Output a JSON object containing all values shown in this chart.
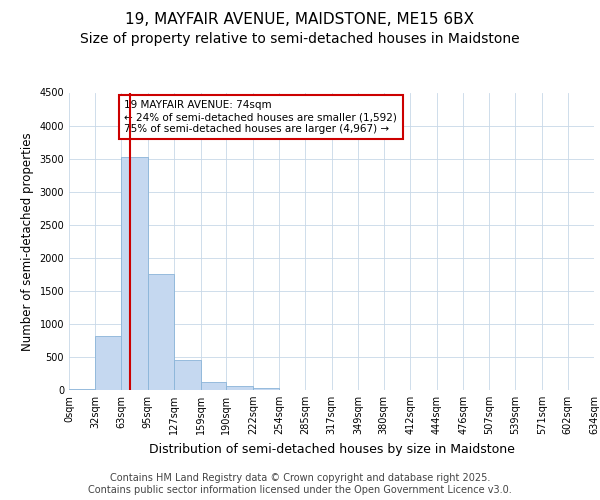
{
  "title_line1": "19, MAYFAIR AVENUE, MAIDSTONE, ME15 6BX",
  "title_line2": "Size of property relative to semi-detached houses in Maidstone",
  "xlabel": "Distribution of semi-detached houses by size in Maidstone",
  "ylabel": "Number of semi-detached properties",
  "bin_labels": [
    "0sqm",
    "32sqm",
    "63sqm",
    "95sqm",
    "127sqm",
    "159sqm",
    "190sqm",
    "222sqm",
    "254sqm",
    "285sqm",
    "317sqm",
    "349sqm",
    "380sqm",
    "412sqm",
    "444sqm",
    "476sqm",
    "507sqm",
    "539sqm",
    "571sqm",
    "602sqm",
    "634sqm"
  ],
  "bin_edges": [
    0,
    32,
    63,
    95,
    127,
    159,
    190,
    222,
    254,
    285,
    317,
    349,
    380,
    412,
    444,
    476,
    507,
    539,
    571,
    602,
    634
  ],
  "bar_values": [
    10,
    820,
    3530,
    1760,
    450,
    120,
    60,
    30,
    0,
    0,
    0,
    0,
    0,
    0,
    0,
    0,
    0,
    0,
    0,
    0
  ],
  "bar_color": "#c5d8f0",
  "bar_edge_color": "#8ab4d8",
  "grid_color": "#c8d8e8",
  "property_value": 74,
  "property_line_color": "#cc0000",
  "annotation_text": "19 MAYFAIR AVENUE: 74sqm\n← 24% of semi-detached houses are smaller (1,592)\n75% of semi-detached houses are larger (4,967) →",
  "annotation_box_color": "#ffffff",
  "annotation_box_edge_color": "#cc0000",
  "ylim": [
    0,
    4500
  ],
  "yticks": [
    0,
    500,
    1000,
    1500,
    2000,
    2500,
    3000,
    3500,
    4000,
    4500
  ],
  "footer_text": "Contains HM Land Registry data © Crown copyright and database right 2025.\nContains public sector information licensed under the Open Government Licence v3.0.",
  "background_color": "#ffffff",
  "axes_background_color": "#ffffff",
  "title_fontsize": 11,
  "subtitle_fontsize": 10,
  "tick_fontsize": 7,
  "ylabel_fontsize": 8.5,
  "xlabel_fontsize": 9,
  "footer_fontsize": 7
}
